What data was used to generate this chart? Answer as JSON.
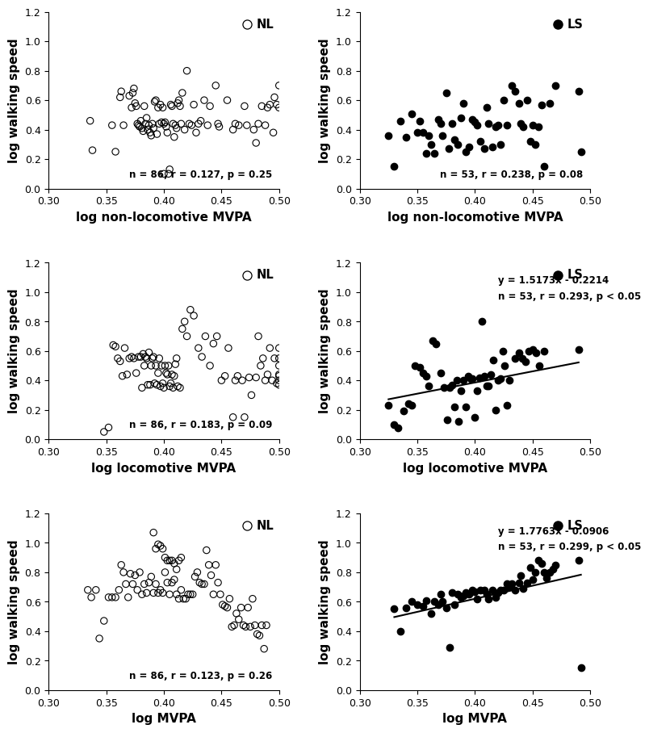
{
  "plots": [
    {
      "row": 0,
      "col": 0,
      "xlabel": "log non-locomotive MVPA",
      "ylabel": "log walking speed",
      "xlim": [
        0.3,
        0.5
      ],
      "ylim": [
        0,
        1.2
      ],
      "xticks": [
        0.3,
        0.35,
        0.4,
        0.45,
        0.5
      ],
      "yticks": [
        0,
        0.2,
        0.4,
        0.6,
        0.8,
        1.0,
        1.2
      ],
      "filled": false,
      "label": "NL",
      "stats": "n = 86, r = 0.127, p = 0.25",
      "has_line": false,
      "line_eq": "",
      "line_slope": 0,
      "line_intercept": 0,
      "x": [
        0.336,
        0.338,
        0.355,
        0.358,
        0.362,
        0.363,
        0.365,
        0.37,
        0.372,
        0.373,
        0.374,
        0.375,
        0.376,
        0.377,
        0.378,
        0.379,
        0.38,
        0.381,
        0.382,
        0.383,
        0.384,
        0.385,
        0.386,
        0.387,
        0.388,
        0.389,
        0.39,
        0.391,
        0.392,
        0.393,
        0.394,
        0.395,
        0.396,
        0.397,
        0.398,
        0.399,
        0.4,
        0.4,
        0.401,
        0.402,
        0.403,
        0.404,
        0.405,
        0.406,
        0.407,
        0.408,
        0.409,
        0.41,
        0.411,
        0.412,
        0.413,
        0.414,
        0.415,
        0.416,
        0.418,
        0.42,
        0.422,
        0.424,
        0.426,
        0.428,
        0.43,
        0.432,
        0.435,
        0.438,
        0.44,
        0.445,
        0.447,
        0.448,
        0.455,
        0.46,
        0.462,
        0.465,
        0.47,
        0.472,
        0.478,
        0.48,
        0.482,
        0.485,
        0.488,
        0.49,
        0.492,
        0.495,
        0.496,
        0.498,
        0.5,
        0.5
      ],
      "y": [
        0.46,
        0.26,
        0.43,
        0.25,
        0.62,
        0.66,
        0.43,
        0.63,
        0.55,
        0.65,
        0.68,
        0.58,
        0.56,
        0.44,
        0.43,
        0.42,
        0.46,
        0.41,
        0.39,
        0.56,
        0.44,
        0.48,
        0.4,
        0.43,
        0.38,
        0.36,
        0.44,
        0.41,
        0.59,
        0.6,
        0.37,
        0.55,
        0.44,
        0.57,
        0.45,
        0.55,
        0.1,
        0.44,
        0.45,
        0.42,
        0.38,
        0.1,
        0.13,
        0.57,
        0.56,
        0.44,
        0.35,
        0.43,
        0.41,
        0.58,
        0.6,
        0.56,
        0.44,
        0.65,
        0.4,
        0.8,
        0.44,
        0.43,
        0.57,
        0.38,
        0.44,
        0.46,
        0.6,
        0.43,
        0.56,
        0.7,
        0.44,
        0.42,
        0.6,
        0.4,
        0.44,
        0.43,
        0.56,
        0.43,
        0.4,
        0.31,
        0.44,
        0.56,
        0.43,
        0.55,
        0.57,
        0.38,
        0.62,
        0.57,
        0.7,
        0.55
      ]
    },
    {
      "row": 0,
      "col": 1,
      "xlabel": "log non-locomotive MVPA",
      "ylabel": "log walking speed",
      "xlim": [
        0.3,
        0.5
      ],
      "ylim": [
        0,
        1.2
      ],
      "xticks": [
        0.3,
        0.35,
        0.4,
        0.45,
        0.5
      ],
      "yticks": [
        0,
        0.2,
        0.4,
        0.6,
        0.8,
        1.0,
        1.2
      ],
      "filled": true,
      "label": "LS",
      "stats": "n = 53, r = 0.238, p = 0.08",
      "has_line": false,
      "line_eq": "",
      "line_slope": 0,
      "line_intercept": 0,
      "x": [
        0.325,
        0.33,
        0.335,
        0.34,
        0.345,
        0.35,
        0.352,
        0.355,
        0.358,
        0.36,
        0.362,
        0.365,
        0.368,
        0.37,
        0.372,
        0.375,
        0.377,
        0.38,
        0.382,
        0.385,
        0.388,
        0.39,
        0.392,
        0.395,
        0.398,
        0.4,
        0.402,
        0.405,
        0.408,
        0.41,
        0.412,
        0.415,
        0.418,
        0.42,
        0.422,
        0.425,
        0.428,
        0.432,
        0.435,
        0.438,
        0.44,
        0.442,
        0.445,
        0.448,
        0.45,
        0.452,
        0.455,
        0.458,
        0.46,
        0.465,
        0.47,
        0.49,
        0.492
      ],
      "y": [
        0.36,
        0.15,
        0.46,
        0.35,
        0.51,
        0.38,
        0.46,
        0.38,
        0.24,
        0.36,
        0.3,
        0.24,
        0.47,
        0.44,
        0.36,
        0.65,
        0.27,
        0.44,
        0.33,
        0.3,
        0.48,
        0.58,
        0.25,
        0.28,
        0.47,
        0.45,
        0.43,
        0.32,
        0.27,
        0.55,
        0.44,
        0.28,
        0.42,
        0.43,
        0.3,
        0.6,
        0.43,
        0.7,
        0.66,
        0.58,
        0.44,
        0.42,
        0.6,
        0.32,
        0.43,
        0.3,
        0.42,
        0.57,
        0.15,
        0.58,
        0.7,
        0.66,
        0.25
      ]
    },
    {
      "row": 1,
      "col": 0,
      "xlabel": "log locomotive MVPA",
      "ylabel": "log walking speed",
      "xlim": [
        0.3,
        0.5
      ],
      "ylim": [
        0,
        1.2
      ],
      "xticks": [
        0.3,
        0.35,
        0.4,
        0.45,
        0.5
      ],
      "yticks": [
        0,
        0.2,
        0.4,
        0.6,
        0.8,
        1.0,
        1.2
      ],
      "filled": false,
      "label": "NL",
      "stats": "n = 86, r = 0.183, p = 0.09",
      "has_line": false,
      "line_eq": "",
      "line_slope": 0,
      "line_intercept": 0,
      "x": [
        0.348,
        0.352,
        0.356,
        0.358,
        0.36,
        0.362,
        0.364,
        0.366,
        0.368,
        0.37,
        0.372,
        0.374,
        0.376,
        0.378,
        0.38,
        0.381,
        0.382,
        0.383,
        0.384,
        0.385,
        0.386,
        0.387,
        0.388,
        0.389,
        0.39,
        0.391,
        0.392,
        0.393,
        0.394,
        0.395,
        0.396,
        0.397,
        0.398,
        0.399,
        0.4,
        0.401,
        0.402,
        0.403,
        0.404,
        0.405,
        0.406,
        0.407,
        0.408,
        0.409,
        0.41,
        0.411,
        0.412,
        0.414,
        0.416,
        0.418,
        0.42,
        0.423,
        0.426,
        0.43,
        0.433,
        0.436,
        0.44,
        0.443,
        0.446,
        0.45,
        0.453,
        0.456,
        0.46,
        0.462,
        0.464,
        0.468,
        0.47,
        0.474,
        0.476,
        0.48,
        0.482,
        0.484,
        0.486,
        0.488,
        0.49,
        0.492,
        0.494,
        0.496,
        0.498,
        0.5,
        0.5,
        0.5,
        0.5,
        0.5,
        0.5,
        0.5
      ],
      "y": [
        0.05,
        0.08,
        0.64,
        0.63,
        0.55,
        0.53,
        0.43,
        0.62,
        0.44,
        0.55,
        0.56,
        0.55,
        0.45,
        0.56,
        0.56,
        0.35,
        0.58,
        0.5,
        0.56,
        0.55,
        0.37,
        0.59,
        0.37,
        0.5,
        0.55,
        0.56,
        0.38,
        0.5,
        0.37,
        0.45,
        0.55,
        0.36,
        0.5,
        0.38,
        0.35,
        0.5,
        0.45,
        0.44,
        0.5,
        0.36,
        0.38,
        0.44,
        0.35,
        0.43,
        0.51,
        0.55,
        0.36,
        0.35,
        0.75,
        0.8,
        0.7,
        0.88,
        0.84,
        0.62,
        0.56,
        0.7,
        0.5,
        0.65,
        0.7,
        0.4,
        0.43,
        0.62,
        0.15,
        0.4,
        0.43,
        0.4,
        0.15,
        0.42,
        0.3,
        0.42,
        0.7,
        0.5,
        0.55,
        0.4,
        0.44,
        0.62,
        0.4,
        0.55,
        0.38,
        0.37,
        0.44,
        0.5,
        0.62,
        0.43,
        0.4,
        0.55
      ]
    },
    {
      "row": 1,
      "col": 1,
      "xlabel": "log locomotive MVPA",
      "ylabel": "log walking speed",
      "xlim": [
        0.3,
        0.5
      ],
      "ylim": [
        0,
        1.2
      ],
      "xticks": [
        0.3,
        0.35,
        0.4,
        0.45,
        0.5
      ],
      "yticks": [
        0,
        0.2,
        0.4,
        0.6,
        0.8,
        1.0,
        1.2
      ],
      "filled": true,
      "label": "LS",
      "stats": "n = 53, r = 0.293, p < 0.05",
      "has_line": true,
      "line_eq": "y = 1.5173x - 0.2214",
      "line_slope": 1.5173,
      "line_intercept": -0.2214,
      "x": [
        0.325,
        0.33,
        0.333,
        0.338,
        0.342,
        0.345,
        0.348,
        0.352,
        0.355,
        0.358,
        0.36,
        0.363,
        0.366,
        0.37,
        0.373,
        0.376,
        0.378,
        0.38,
        0.382,
        0.384,
        0.386,
        0.388,
        0.39,
        0.392,
        0.394,
        0.396,
        0.398,
        0.4,
        0.402,
        0.404,
        0.406,
        0.408,
        0.41,
        0.412,
        0.414,
        0.416,
        0.418,
        0.42,
        0.422,
        0.424,
        0.426,
        0.428,
        0.43,
        0.435,
        0.438,
        0.441,
        0.444,
        0.447,
        0.45,
        0.453,
        0.456,
        0.46,
        0.49
      ],
      "y": [
        0.23,
        0.1,
        0.08,
        0.19,
        0.24,
        0.23,
        0.5,
        0.49,
        0.45,
        0.43,
        0.36,
        0.67,
        0.65,
        0.45,
        0.35,
        0.13,
        0.35,
        0.37,
        0.22,
        0.4,
        0.12,
        0.33,
        0.4,
        0.22,
        0.43,
        0.41,
        0.41,
        0.15,
        0.33,
        0.42,
        0.8,
        0.43,
        0.36,
        0.36,
        0.44,
        0.54,
        0.2,
        0.4,
        0.41,
        0.6,
        0.5,
        0.23,
        0.4,
        0.55,
        0.59,
        0.55,
        0.53,
        0.6,
        0.61,
        0.59,
        0.5,
        0.6,
        0.61
      ]
    },
    {
      "row": 2,
      "col": 0,
      "xlabel": "log MVPA",
      "ylabel": "log walking speed",
      "xlim": [
        0.3,
        0.5
      ],
      "ylim": [
        0,
        1.2
      ],
      "xticks": [
        0.3,
        0.35,
        0.4,
        0.45,
        0.5
      ],
      "yticks": [
        0,
        0.2,
        0.4,
        0.6,
        0.8,
        1.0,
        1.2
      ],
      "filled": false,
      "label": "NL",
      "stats": "n = 86, r = 0.123, p = 0.26",
      "has_line": false,
      "line_eq": "",
      "line_slope": 0,
      "line_intercept": 0,
      "x": [
        0.334,
        0.337,
        0.341,
        0.344,
        0.348,
        0.352,
        0.355,
        0.358,
        0.361,
        0.363,
        0.365,
        0.367,
        0.369,
        0.371,
        0.373,
        0.375,
        0.377,
        0.379,
        0.381,
        0.383,
        0.385,
        0.387,
        0.389,
        0.391,
        0.393,
        0.395,
        0.397,
        0.399,
        0.401,
        0.403,
        0.405,
        0.407,
        0.409,
        0.411,
        0.413,
        0.415,
        0.417,
        0.419,
        0.421,
        0.423,
        0.425,
        0.427,
        0.429,
        0.431,
        0.433,
        0.435,
        0.437,
        0.439,
        0.441,
        0.443,
        0.445,
        0.447,
        0.449,
        0.451,
        0.453,
        0.455,
        0.457,
        0.459,
        0.461,
        0.463,
        0.465,
        0.467,
        0.469,
        0.471,
        0.473,
        0.475,
        0.477,
        0.479,
        0.481,
        0.483,
        0.485,
        0.487,
        0.489,
        0.391,
        0.393,
        0.395,
        0.397,
        0.399,
        0.401,
        0.403,
        0.405,
        0.407,
        0.409,
        0.411,
        0.413,
        0.415
      ],
      "y": [
        0.68,
        0.63,
        0.68,
        0.35,
        0.47,
        0.63,
        0.63,
        0.63,
        0.68,
        0.85,
        0.8,
        0.72,
        0.63,
        0.79,
        0.72,
        0.78,
        0.68,
        0.8,
        0.65,
        0.72,
        0.66,
        0.73,
        0.77,
        0.66,
        0.72,
        0.66,
        0.68,
        0.66,
        0.8,
        0.73,
        0.65,
        0.73,
        0.75,
        0.65,
        0.62,
        0.68,
        0.62,
        0.62,
        0.65,
        0.65,
        0.65,
        0.77,
        0.8,
        0.73,
        0.72,
        0.72,
        0.95,
        0.85,
        0.78,
        0.65,
        0.85,
        0.73,
        0.65,
        0.58,
        0.57,
        0.56,
        0.62,
        0.43,
        0.44,
        0.52,
        0.48,
        0.56,
        0.44,
        0.43,
        0.56,
        0.43,
        0.62,
        0.44,
        0.38,
        0.37,
        0.44,
        0.28,
        0.44,
        1.07,
        0.96,
        0.99,
        0.98,
        0.96,
        0.9,
        0.88,
        0.88,
        0.88,
        0.86,
        0.82,
        0.88,
        0.9
      ]
    },
    {
      "row": 2,
      "col": 1,
      "xlabel": "log MVPA",
      "ylabel": "log walking speed",
      "xlim": [
        0.3,
        0.5
      ],
      "ylim": [
        0,
        1.2
      ],
      "xticks": [
        0.3,
        0.35,
        0.4,
        0.45,
        0.5
      ],
      "yticks": [
        0,
        0.2,
        0.4,
        0.6,
        0.8,
        1.0,
        1.2
      ],
      "filled": true,
      "label": "LS",
      "stats": "n = 53, r = 0.299, p < 0.05",
      "has_line": true,
      "line_eq": "y = 1.7763x - 0.0906",
      "line_slope": 1.7763,
      "line_intercept": -0.0906,
      "x": [
        0.33,
        0.335,
        0.34,
        0.345,
        0.35,
        0.355,
        0.358,
        0.362,
        0.365,
        0.368,
        0.37,
        0.372,
        0.375,
        0.378,
        0.38,
        0.382,
        0.385,
        0.388,
        0.39,
        0.392,
        0.395,
        0.398,
        0.4,
        0.402,
        0.405,
        0.408,
        0.41,
        0.412,
        0.415,
        0.418,
        0.42,
        0.422,
        0.425,
        0.428,
        0.43,
        0.432,
        0.435,
        0.438,
        0.44,
        0.442,
        0.445,
        0.448,
        0.45,
        0.452,
        0.455,
        0.458,
        0.46,
        0.462,
        0.465,
        0.468,
        0.47,
        0.49,
        0.492
      ],
      "y": [
        0.55,
        0.4,
        0.56,
        0.6,
        0.58,
        0.57,
        0.61,
        0.52,
        0.6,
        0.58,
        0.65,
        0.6,
        0.56,
        0.29,
        0.66,
        0.58,
        0.65,
        0.63,
        0.64,
        0.66,
        0.65,
        0.68,
        0.67,
        0.62,
        0.68,
        0.68,
        0.65,
        0.62,
        0.68,
        0.63,
        0.66,
        0.68,
        0.68,
        0.72,
        0.7,
        0.72,
        0.68,
        0.73,
        0.78,
        0.69,
        0.73,
        0.83,
        0.75,
        0.8,
        0.88,
        0.86,
        0.8,
        0.76,
        0.8,
        0.82,
        0.85,
        0.88,
        0.15
      ]
    }
  ],
  "fig_width": 7.8,
  "fig_height": 9.13,
  "marker_size": 6,
  "fontsize_axis_label": 11,
  "fontsize_tick": 9,
  "fontsize_stats": 8.5,
  "fontsize_legend": 10.5
}
